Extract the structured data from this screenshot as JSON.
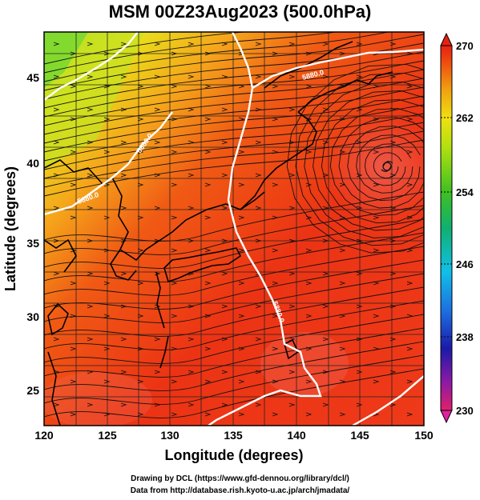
{
  "title": "MSM 00Z23Aug2023 (500.0hPa)",
  "x_axis": {
    "label": "Longitude (degrees)",
    "ticks": [
      "120",
      "125",
      "130",
      "135",
      "140",
      "145",
      "150"
    ]
  },
  "y_axis": {
    "label": "Latitude  (degrees)",
    "ticks": [
      "25",
      "30",
      "35",
      "40",
      "45"
    ]
  },
  "colorbar": {
    "ticks": [
      "270",
      "262",
      "254",
      "246",
      "238",
      "230"
    ],
    "colors": [
      "#e0206a",
      "#8a1aa6",
      "#1a1aa8",
      "#1d6de0",
      "#10c0e8",
      "#10b070",
      "#40c020",
      "#b0e010",
      "#f0e010",
      "#f0a010",
      "#f05010",
      "#e82010"
    ]
  },
  "contour_labels": [
    "5880.0",
    "5880.0",
    "5880.0",
    "5880.0"
  ],
  "credits": {
    "line1": "Drawing by DCL (https://www.gfd-dennou.org/library/dcl/)",
    "line2": "Data from http://database.rish.kyoto-u.ac.jp/arch/jmadata/"
  }
}
